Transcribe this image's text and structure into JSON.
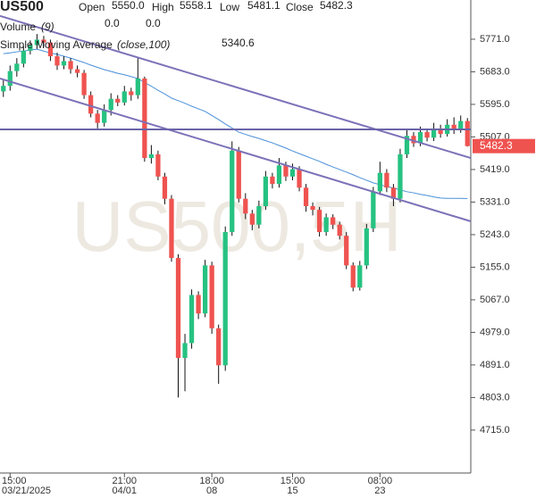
{
  "chart_data": {
    "type": "candlestick",
    "header": {
      "symbol": "US500",
      "fields": [
        {
          "name": "Open",
          "value": "5550.0"
        },
        {
          "name": "High",
          "value": "5558.1"
        },
        {
          "name": "Low",
          "value": "5481.1"
        },
        {
          "name": "Close",
          "value": "5482.3"
        }
      ],
      "volume_name": "Volume",
      "volume_params": "(9)",
      "volume_values": [
        {
          "value": 0,
          "label": "0.0",
          "color": "#ef5350"
        },
        {
          "value": 0,
          "label": "0.0",
          "color": "#3b78d8"
        }
      ],
      "sma_name": "Simple Moving Average",
      "sma_params": "(close,100)"
    },
    "watermark": "US500,5H",
    "up_color": "#26c281",
    "down_color": "#ef5350",
    "open": [
      5630,
      5645,
      5685,
      5705,
      5740,
      5755,
      5770,
      5762,
      5725,
      5700,
      5712,
      5690,
      5680,
      5620,
      5570,
      5545,
      5580,
      5610,
      5600,
      5630,
      5620,
      5665,
      5450,
      5460,
      5400,
      5340,
      5180,
      4910,
      4950,
      5080,
      5030,
      5160,
      4990,
      4890,
      5250,
      5470,
      5340,
      5300,
      5270,
      5320,
      5400,
      5380,
      5430,
      5400,
      5420,
      5370,
      5320,
      5310,
      5250,
      5290,
      5270,
      5240,
      5160,
      5100,
      5160,
      5260,
      5360,
      5410,
      5370,
      5340,
      5460,
      5510,
      5490,
      5520,
      5505,
      5530,
      5515,
      5540,
      5525,
      5550
    ],
    "high": [
      5660,
      5700,
      5720,
      5752,
      5768,
      5785,
      5780,
      5770,
      5735,
      5725,
      5720,
      5700,
      5688,
      5630,
      5580,
      5595,
      5625,
      5620,
      5645,
      5640,
      5720,
      5670,
      5485,
      5470,
      5410,
      5350,
      5190,
      4975,
      5095,
      5090,
      5175,
      5170,
      5000,
      5265,
      5495,
      5480,
      5355,
      5310,
      5335,
      5415,
      5410,
      5450,
      5440,
      5435,
      5428,
      5380,
      5330,
      5318,
      5300,
      5298,
      5278,
      5250,
      5168,
      5172,
      5272,
      5372,
      5440,
      5420,
      5380,
      5475,
      5525,
      5520,
      5535,
      5530,
      5545,
      5540,
      5555,
      5560,
      5565,
      5558.1
    ],
    "low": [
      5615,
      5632,
      5670,
      5695,
      5730,
      5745,
      5750,
      5712,
      5688,
      5690,
      5678,
      5668,
      5610,
      5560,
      5530,
      5535,
      5565,
      5590,
      5592,
      5605,
      5610,
      5440,
      5435,
      5390,
      5325,
      5170,
      4803,
      4820,
      4935,
      5015,
      5020,
      4975,
      4840,
      4875,
      5240,
      5330,
      5285,
      5255,
      5260,
      5310,
      5368,
      5370,
      5388,
      5390,
      5360,
      5305,
      5295,
      5238,
      5240,
      5258,
      5230,
      5150,
      5090,
      5092,
      5150,
      5250,
      5350,
      5358,
      5320,
      5330,
      5450,
      5480,
      5482,
      5495,
      5496,
      5505,
      5508,
      5515,
      5518,
      5481.1
    ],
    "close": [
      5645,
      5685,
      5705,
      5740,
      5755,
      5770,
      5762,
      5725,
      5700,
      5712,
      5690,
      5680,
      5620,
      5570,
      5545,
      5580,
      5610,
      5600,
      5630,
      5620,
      5665,
      5450,
      5460,
      5400,
      5340,
      5180,
      4910,
      4950,
      5080,
      5030,
      5160,
      4990,
      4890,
      5250,
      5470,
      5340,
      5300,
      5270,
      5320,
      5400,
      5380,
      5430,
      5400,
      5420,
      5370,
      5320,
      5310,
      5250,
      5290,
      5270,
      5240,
      5160,
      5100,
      5160,
      5260,
      5360,
      5410,
      5370,
      5340,
      5460,
      5510,
      5490,
      5520,
      5505,
      5530,
      5515,
      5540,
      5525,
      5550,
      5482.3
    ],
    "sma": {
      "color": "#4a90d9",
      "values": [
        5732,
        5734,
        5737,
        5739,
        5742,
        5744,
        5739,
        5734,
        5730,
        5725,
        5720,
        5714,
        5708,
        5701,
        5695,
        5689,
        5684,
        5679,
        5675,
        5670,
        5665,
        5654,
        5644,
        5633,
        5623,
        5612,
        5605,
        5598,
        5590,
        5583,
        5576,
        5565,
        5554,
        5542,
        5531,
        5520,
        5514,
        5508,
        5503,
        5497,
        5491,
        5484,
        5477,
        5469,
        5462,
        5455,
        5448,
        5441,
        5433,
        5426,
        5419,
        5412,
        5405,
        5397,
        5390,
        5383,
        5378,
        5373,
        5369,
        5364,
        5359,
        5356,
        5352,
        5349,
        5345,
        5342,
        5341,
        5341,
        5341,
        5340.6
      ]
    },
    "trendlines": [
      {
        "color": "#7b72b8",
        "y": [
          5834,
          5450
        ]
      },
      {
        "color": "#7b72b8",
        "y": [
          5665,
          5279
        ]
      },
      {
        "color": "#6a64a8",
        "y": [
          5527.5,
          5527.5
        ]
      }
    ],
    "ylim": [
      4599,
      5877
    ],
    "yticks": [
      {
        "value": 5771,
        "label": "5771.0"
      },
      {
        "value": 5683,
        "label": "5683.0"
      },
      {
        "value": 5595,
        "label": "5595.0"
      },
      {
        "value": 5507,
        "label": "5507.0"
      },
      {
        "value": 5419,
        "label": "5419.0"
      },
      {
        "value": 5331,
        "label": "5331.0"
      },
      {
        "value": 5243,
        "label": "5243.0"
      },
      {
        "value": 5155,
        "label": "5155.0"
      },
      {
        "value": 5067,
        "label": "5067.0"
      },
      {
        "value": 4979,
        "label": "4979.0"
      },
      {
        "value": 4891,
        "label": "4891.0"
      },
      {
        "value": 4803,
        "label": "4803.0"
      },
      {
        "value": 4715,
        "label": "4715.0"
      }
    ],
    "xticks": [
      {
        "value": 1,
        "label": "15:00",
        "sublabel": "03/21/2025"
      },
      {
        "value": 18,
        "label": "21:00",
        "sublabel": "04/01"
      },
      {
        "value": 31,
        "label": "18:00",
        "sublabel": "08"
      },
      {
        "value": 43,
        "label": "15:00",
        "sublabel": "15"
      },
      {
        "value": 56,
        "label": "08:00",
        "sublabel": "23"
      }
    ]
  }
}
